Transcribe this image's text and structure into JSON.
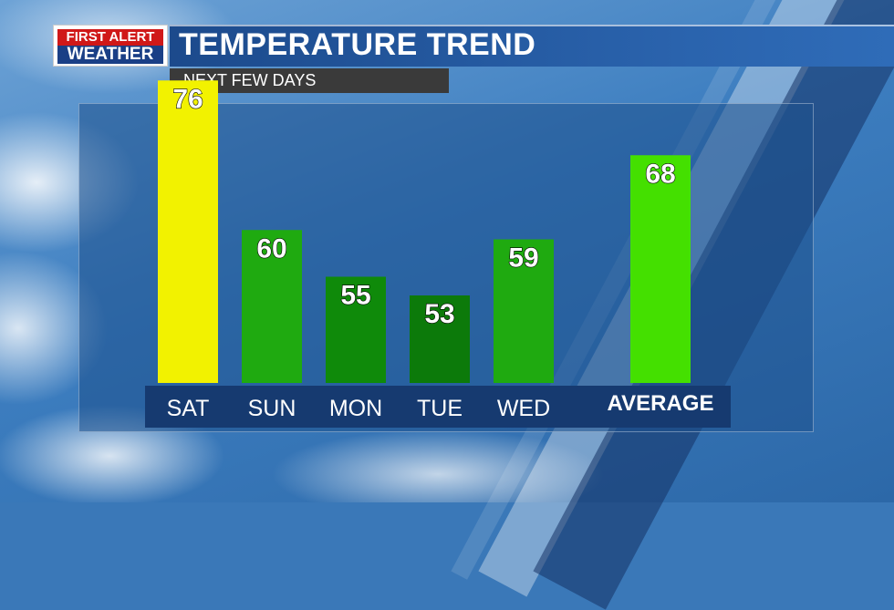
{
  "logo": {
    "line1": "FIRST ALERT",
    "line2": "WEATHER"
  },
  "header": {
    "title": "TEMPERATURE TREND"
  },
  "subtitle": "NEXT FEW DAYS",
  "chart_data": {
    "type": "bar",
    "title": "TEMPERATURE TREND",
    "subtitle": "NEXT FEW DAYS",
    "categories": [
      "SAT",
      "SUN",
      "MON",
      "TUE",
      "WED",
      "AVERAGE"
    ],
    "values": [
      76,
      60,
      55,
      53,
      59,
      68
    ],
    "colors": [
      "#f2f200",
      "#1faa10",
      "#0f8a0a",
      "#0c7a0a",
      "#1faa10",
      "#44e000"
    ],
    "xlabel": "",
    "ylabel": "",
    "grid": false,
    "legend": "none"
  }
}
